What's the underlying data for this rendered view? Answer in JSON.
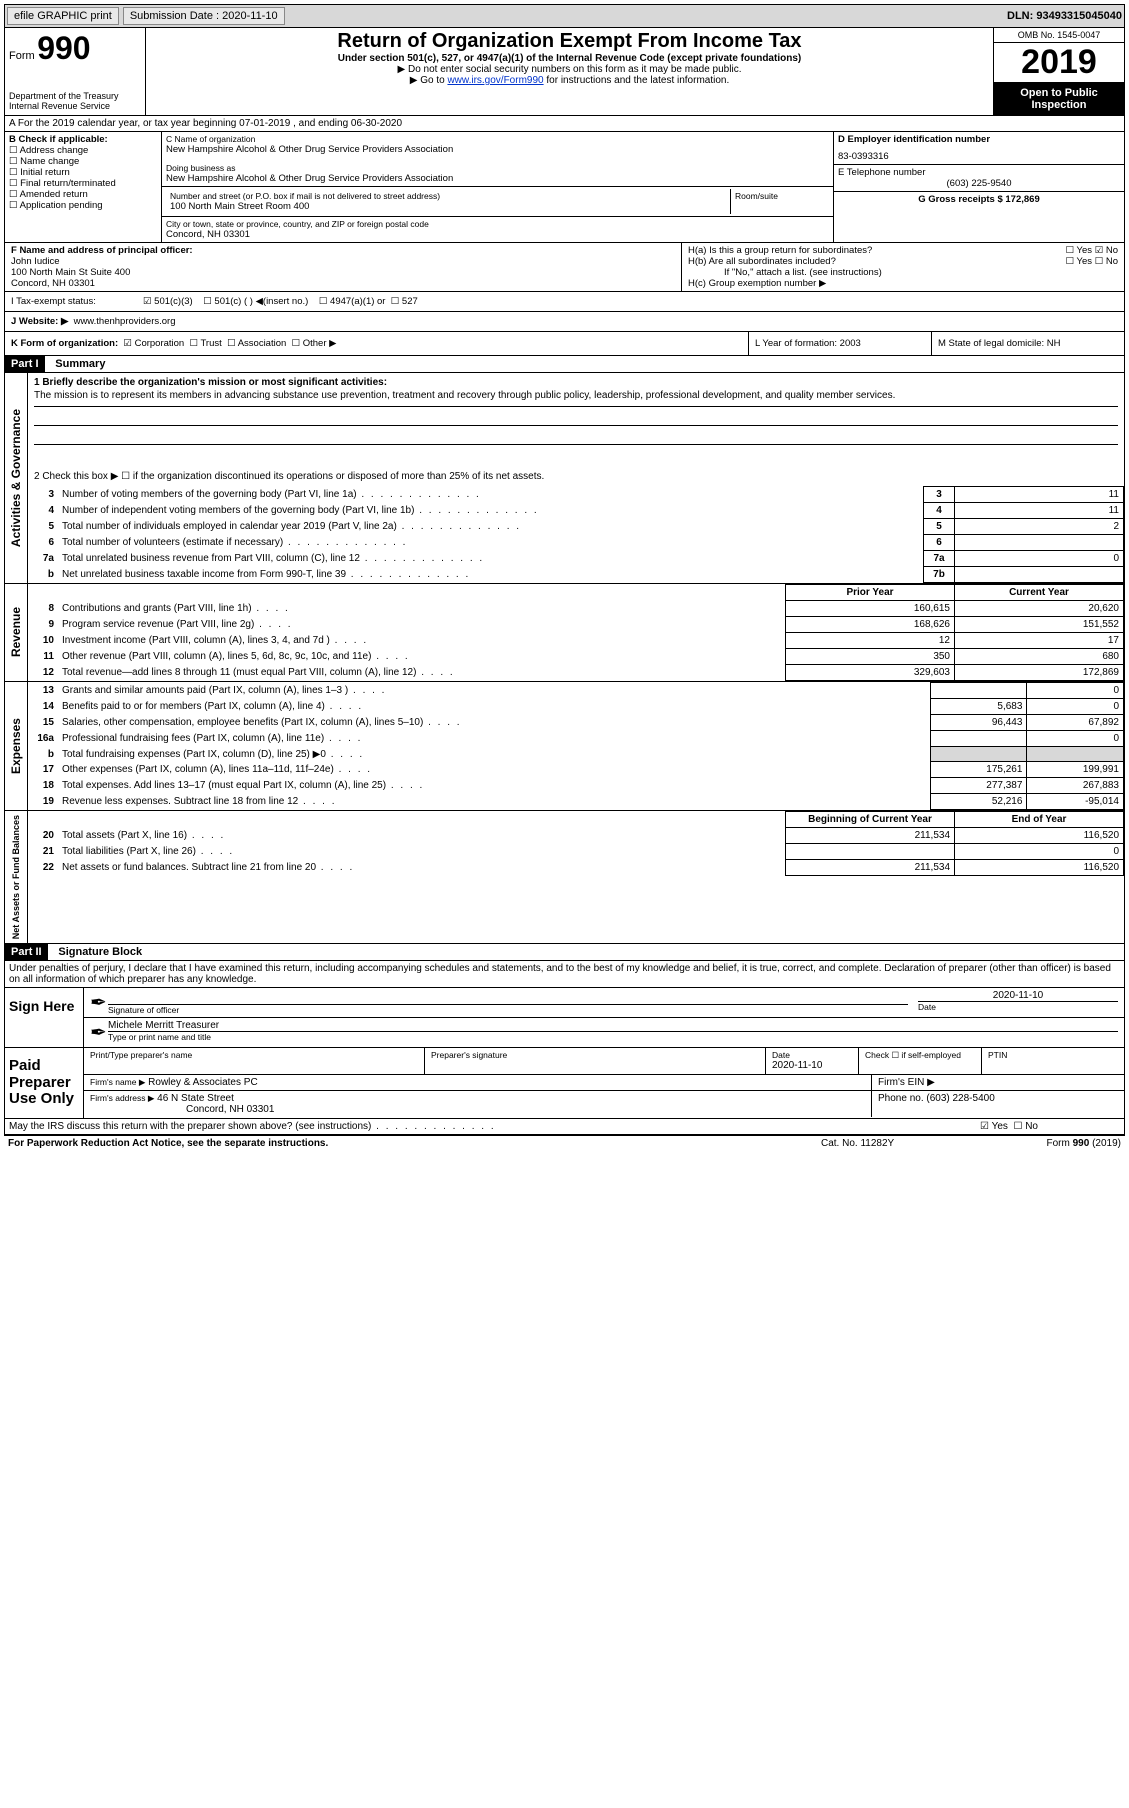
{
  "topbar": {
    "efile": "efile GRAPHIC print",
    "submission_label": "Submission Date : 2020-11-10",
    "dln_label": "DLN: 93493315045040"
  },
  "header": {
    "form_word": "Form",
    "form_number": "990",
    "dept": "Department of the Treasury",
    "irs": "Internal Revenue Service",
    "title": "Return of Organization Exempt From Income Tax",
    "subtitle": "Under section 501(c), 527, or 4947(a)(1) of the Internal Revenue Code (except private foundations)",
    "note1": "▶ Do not enter social security numbers on this form as it may be made public.",
    "note2_pre": "▶ Go to ",
    "note2_link": "www.irs.gov/Form990",
    "note2_post": " for instructions and the latest information.",
    "omb": "OMB No. 1545-0047",
    "year": "2019",
    "open": "Open to Public Inspection"
  },
  "period": {
    "line": "A For the 2019 calendar year, or tax year beginning 07-01-2019    , and ending 06-30-2020"
  },
  "B": {
    "header": "B Check if applicable:",
    "items": [
      "Address change",
      "Name change",
      "Initial return",
      "Final return/terminated",
      "Amended return",
      "Application pending"
    ]
  },
  "C": {
    "name_label": "C Name of organization",
    "name": "New Hampshire Alcohol & Other Drug Service Providers Association",
    "dba_label": "Doing business as",
    "dba": "New Hampshire Alcohol & Other Drug Service Providers Association",
    "street_label": "Number and street (or P.O. box if mail is not delivered to street address)",
    "room_label": "Room/suite",
    "street": "100 North Main Street Room 400",
    "city_label": "City or town, state or province, country, and ZIP or foreign postal code",
    "city": "Concord, NH  03301"
  },
  "D": {
    "label": "D Employer identification number",
    "value": "83-0393316"
  },
  "E": {
    "label": "E Telephone number",
    "value": "(603) 225-9540"
  },
  "G": {
    "label": "G Gross receipts $ 172,869"
  },
  "F": {
    "label": "F  Name and address of principal officer:",
    "name": "John Iudice",
    "addr1": "100 North Main St Suite 400",
    "addr2": "Concord, NH  03301"
  },
  "H": {
    "a": "H(a)  Is this a group return for subordinates?",
    "a_yes": "Yes",
    "a_no": "No",
    "b": "H(b)  Are all subordinates included?",
    "b_yes": "Yes",
    "b_no": "No",
    "b_note": "If \"No,\" attach a list. (see instructions)",
    "c": "H(c)  Group exemption number ▶"
  },
  "I": {
    "label": "I    Tax-exempt status:",
    "opts": [
      "501(c)(3)",
      "501(c) (  ) ◀(insert no.)",
      "4947(a)(1) or",
      "527"
    ]
  },
  "J": {
    "label": "J   Website: ▶",
    "value": "www.thenhproviders.org"
  },
  "K": {
    "label": "K Form of organization:",
    "opts": [
      "Corporation",
      "Trust",
      "Association",
      "Other ▶"
    ]
  },
  "L": {
    "label": "L Year of formation: 2003"
  },
  "M": {
    "label": "M State of legal domicile: NH"
  },
  "part1": {
    "tag": "Part I",
    "title": "Summary",
    "q1_label": "1  Briefly describe the organization's mission or most significant activities:",
    "mission": "The mission is to represent its members in advancing substance use prevention, treatment and recovery through public policy, leadership, professional development, and quality member services.",
    "q2": "2   Check this box ▶ ☐  if the organization discontinued its operations or disposed of more than 25% of its net assets.",
    "rows_gov": [
      {
        "n": "3",
        "t": "Number of voting members of the governing body (Part VI, line 1a)",
        "b": "3",
        "v": "11"
      },
      {
        "n": "4",
        "t": "Number of independent voting members of the governing body (Part VI, line 1b)",
        "b": "4",
        "v": "11"
      },
      {
        "n": "5",
        "t": "Total number of individuals employed in calendar year 2019 (Part V, line 2a)",
        "b": "5",
        "v": "2"
      },
      {
        "n": "6",
        "t": "Total number of volunteers (estimate if necessary)",
        "b": "6",
        "v": ""
      },
      {
        "n": "7a",
        "t": "Total unrelated business revenue from Part VIII, column (C), line 12",
        "b": "7a",
        "v": "0"
      },
      {
        "n": "b",
        "t": "Net unrelated business taxable income from Form 990-T, line 39",
        "b": "7b",
        "v": ""
      }
    ],
    "col_prior": "Prior Year",
    "col_curr": "Current Year",
    "rows_rev": [
      {
        "n": "8",
        "t": "Contributions and grants (Part VIII, line 1h)",
        "p": "160,615",
        "c": "20,620"
      },
      {
        "n": "9",
        "t": "Program service revenue (Part VIII, line 2g)",
        "p": "168,626",
        "c": "151,552"
      },
      {
        "n": "10",
        "t": "Investment income (Part VIII, column (A), lines 3, 4, and 7d )",
        "p": "12",
        "c": "17"
      },
      {
        "n": "11",
        "t": "Other revenue (Part VIII, column (A), lines 5, 6d, 8c, 9c, 10c, and 11e)",
        "p": "350",
        "c": "680"
      },
      {
        "n": "12",
        "t": "Total revenue—add lines 8 through 11 (must equal Part VIII, column (A), line 12)",
        "p": "329,603",
        "c": "172,869"
      }
    ],
    "rows_exp": [
      {
        "n": "13",
        "t": "Grants and similar amounts paid (Part IX, column (A), lines 1–3 )",
        "p": "",
        "c": "0"
      },
      {
        "n": "14",
        "t": "Benefits paid to or for members (Part IX, column (A), line 4)",
        "p": "5,683",
        "c": "0"
      },
      {
        "n": "15",
        "t": "Salaries, other compensation, employee benefits (Part IX, column (A), lines 5–10)",
        "p": "96,443",
        "c": "67,892"
      },
      {
        "n": "16a",
        "t": "Professional fundraising fees (Part IX, column (A), line 11e)",
        "p": "",
        "c": "0"
      },
      {
        "n": "b",
        "t": "Total fundraising expenses (Part IX, column (D), line 25) ▶0",
        "p": "SHADE",
        "c": "SHADE"
      },
      {
        "n": "17",
        "t": "Other expenses (Part IX, column (A), lines 11a–11d, 11f–24e)",
        "p": "175,261",
        "c": "199,991"
      },
      {
        "n": "18",
        "t": "Total expenses. Add lines 13–17 (must equal Part IX, column (A), line 25)",
        "p": "277,387",
        "c": "267,883"
      },
      {
        "n": "19",
        "t": "Revenue less expenses. Subtract line 18 from line 12",
        "p": "52,216",
        "c": "-95,014"
      }
    ],
    "col_begin": "Beginning of Current Year",
    "col_end": "End of Year",
    "rows_net": [
      {
        "n": "20",
        "t": "Total assets (Part X, line 16)",
        "p": "211,534",
        "c": "116,520"
      },
      {
        "n": "21",
        "t": "Total liabilities (Part X, line 26)",
        "p": "",
        "c": "0"
      },
      {
        "n": "22",
        "t": "Net assets or fund balances. Subtract line 21 from line 20",
        "p": "211,534",
        "c": "116,520"
      }
    ],
    "side_gov": "Activities & Governance",
    "side_rev": "Revenue",
    "side_exp": "Expenses",
    "side_net": "Net Assets or Fund Balances"
  },
  "part2": {
    "tag": "Part II",
    "title": "Signature Block",
    "decl": "Under penalties of perjury, I declare that I have examined this return, including accompanying schedules and statements, and to the best of my knowledge and belief, it is true, correct, and complete. Declaration of preparer (other than officer) is based on all information of which preparer has any knowledge.",
    "sign_here": "Sign Here",
    "sig_officer": "Signature of officer",
    "sig_date": "2020-11-10",
    "date_label": "Date",
    "officer_name": "Michele Merritt Treasurer",
    "officer_type": "Type or print name and title",
    "paid": "Paid Preparer Use Only",
    "prep_name_label": "Print/Type preparer's name",
    "prep_sig_label": "Preparer's signature",
    "prep_date_label": "Date",
    "prep_date": "2020-11-10",
    "check_self": "Check ☐ if self-employed",
    "ptin": "PTIN",
    "firm_name_label": "Firm's name    ▶",
    "firm_name": "Rowley & Associates PC",
    "firm_ein": "Firm's EIN ▶",
    "firm_addr_label": "Firm's address ▶",
    "firm_addr": "46 N State Street",
    "firm_city": "Concord, NH  03301",
    "firm_phone": "Phone no. (603) 228-5400",
    "discuss": "May the IRS discuss this return with the preparer shown above? (see instructions)",
    "yes": "Yes",
    "no": "No"
  },
  "footer": {
    "left": "For Paperwork Reduction Act Notice, see the separate instructions.",
    "mid": "Cat. No. 11282Y",
    "right": "Form 990 (2019)"
  }
}
